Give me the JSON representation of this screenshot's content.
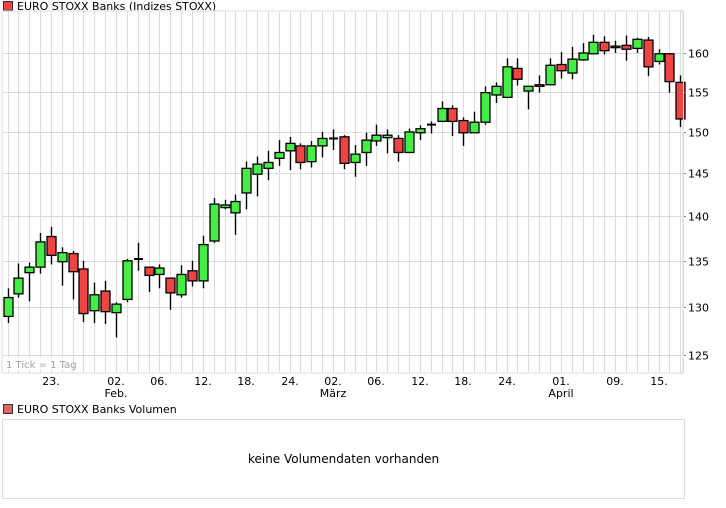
{
  "header": {
    "title": "EURO STOXX Banks (Indizes STOXX)",
    "legend_color": "#ee4444"
  },
  "volume_panel": {
    "title": "EURO STOXX Banks Volumen",
    "legend_color": "#dd6666",
    "message": "keine Volumendaten vorhanden"
  },
  "tick_note": "1 Tick = 1 Tag",
  "colors": {
    "up": "#44ee44",
    "down": "#ee4444",
    "grid": "#dcdcdc",
    "outline": "#000000"
  },
  "chart_data": {
    "type": "candlestick",
    "title": "EURO STOXX Banks (Indizes STOXX)",
    "xlabel": "",
    "ylabel": "",
    "y_scale": "log",
    "ylim": [
      123.5,
      163.5
    ],
    "yticks": [
      125,
      130,
      135,
      140,
      145,
      150,
      155,
      160
    ],
    "grid": true,
    "legend_position": "top-left",
    "x_tick_labels": [
      {
        "index": 4,
        "label": "23.",
        "sub": ""
      },
      {
        "index": 10,
        "label": "02.",
        "sub": "Feb."
      },
      {
        "index": 14,
        "label": "06.",
        "sub": ""
      },
      {
        "index": 18,
        "label": "12.",
        "sub": ""
      },
      {
        "index": 22,
        "label": "18.",
        "sub": ""
      },
      {
        "index": 26,
        "label": "24.",
        "sub": ""
      },
      {
        "index": 30,
        "label": "02.",
        "sub": "März"
      },
      {
        "index": 34,
        "label": "06.",
        "sub": ""
      },
      {
        "index": 38,
        "label": "12.",
        "sub": ""
      },
      {
        "index": 42,
        "label": "18.",
        "sub": ""
      },
      {
        "index": 46,
        "label": "24.",
        "sub": ""
      },
      {
        "index": 51,
        "label": "01.",
        "sub": "April"
      },
      {
        "index": 56,
        "label": "09.",
        "sub": ""
      },
      {
        "index": 60,
        "label": "15.",
        "sub": ""
      }
    ],
    "candles": [
      {
        "o": 129.0,
        "h": 132.0,
        "l": 128.3,
        "c": 131.0
      },
      {
        "o": 131.4,
        "h": 134.7,
        "l": 131.0,
        "c": 133.1
      },
      {
        "o": 133.7,
        "h": 134.8,
        "l": 130.6,
        "c": 134.3
      },
      {
        "o": 134.3,
        "h": 138.1,
        "l": 133.6,
        "c": 137.1
      },
      {
        "o": 137.7,
        "h": 138.8,
        "l": 134.6,
        "c": 135.6
      },
      {
        "o": 134.9,
        "h": 136.5,
        "l": 132.3,
        "c": 135.9
      },
      {
        "o": 135.8,
        "h": 136.1,
        "l": 130.8,
        "c": 133.8
      },
      {
        "o": 134.1,
        "h": 135.0,
        "l": 128.4,
        "c": 129.3
      },
      {
        "o": 129.6,
        "h": 132.6,
        "l": 128.3,
        "c": 131.3
      },
      {
        "o": 131.7,
        "h": 132.8,
        "l": 128.2,
        "c": 129.5
      },
      {
        "o": 129.4,
        "h": 130.5,
        "l": 126.8,
        "c": 130.3
      },
      {
        "o": 130.8,
        "h": 135.2,
        "l": 130.5,
        "c": 135.0
      },
      {
        "o": 135.1,
        "h": 137.0,
        "l": 133.9,
        "c": 135.2
      },
      {
        "o": 134.3,
        "h": 134.3,
        "l": 131.6,
        "c": 133.4
      },
      {
        "o": 133.5,
        "h": 134.6,
        "l": 132.0,
        "c": 134.2
      },
      {
        "o": 133.1,
        "h": 133.1,
        "l": 129.7,
        "c": 131.5
      },
      {
        "o": 131.3,
        "h": 134.5,
        "l": 131.0,
        "c": 133.5
      },
      {
        "o": 133.9,
        "h": 135.0,
        "l": 132.2,
        "c": 132.8
      },
      {
        "o": 132.8,
        "h": 137.8,
        "l": 132.0,
        "c": 136.8
      },
      {
        "o": 137.2,
        "h": 142.1,
        "l": 137.0,
        "c": 141.4
      },
      {
        "o": 141.0,
        "h": 141.9,
        "l": 140.8,
        "c": 141.3
      },
      {
        "o": 140.4,
        "h": 142.5,
        "l": 137.9,
        "c": 141.7
      },
      {
        "o": 142.7,
        "h": 146.4,
        "l": 140.8,
        "c": 145.6
      },
      {
        "o": 144.9,
        "h": 147.0,
        "l": 142.3,
        "c": 146.1
      },
      {
        "o": 145.6,
        "h": 147.7,
        "l": 144.2,
        "c": 146.3
      },
      {
        "o": 146.8,
        "h": 149.0,
        "l": 145.9,
        "c": 147.5
      },
      {
        "o": 147.7,
        "h": 149.4,
        "l": 145.4,
        "c": 148.6
      },
      {
        "o": 148.3,
        "h": 148.6,
        "l": 145.5,
        "c": 146.3
      },
      {
        "o": 146.4,
        "h": 148.9,
        "l": 145.7,
        "c": 148.3
      },
      {
        "o": 148.3,
        "h": 150.0,
        "l": 146.9,
        "c": 149.2
      },
      {
        "o": 149.1,
        "h": 150.3,
        "l": 147.8,
        "c": 149.2
      },
      {
        "o": 149.4,
        "h": 149.6,
        "l": 145.5,
        "c": 146.2
      },
      {
        "o": 146.3,
        "h": 148.4,
        "l": 144.6,
        "c": 147.3
      },
      {
        "o": 147.5,
        "h": 149.9,
        "l": 145.9,
        "c": 149.0
      },
      {
        "o": 148.9,
        "h": 150.9,
        "l": 148.3,
        "c": 149.6
      },
      {
        "o": 149.3,
        "h": 150.3,
        "l": 147.4,
        "c": 149.6
      },
      {
        "o": 149.2,
        "h": 149.6,
        "l": 146.4,
        "c": 147.5
      },
      {
        "o": 147.5,
        "h": 150.4,
        "l": 147.5,
        "c": 150.0
      },
      {
        "o": 149.9,
        "h": 150.8,
        "l": 149.0,
        "c": 150.4
      },
      {
        "o": 150.9,
        "h": 151.3,
        "l": 149.8,
        "c": 150.9
      },
      {
        "o": 151.3,
        "h": 153.8,
        "l": 151.2,
        "c": 152.9
      },
      {
        "o": 152.9,
        "h": 153.3,
        "l": 149.5,
        "c": 151.3
      },
      {
        "o": 151.4,
        "h": 151.8,
        "l": 148.3,
        "c": 149.9
      },
      {
        "o": 149.9,
        "h": 152.5,
        "l": 149.9,
        "c": 151.2
      },
      {
        "o": 151.2,
        "h": 155.7,
        "l": 150.9,
        "c": 154.9
      },
      {
        "o": 154.6,
        "h": 156.2,
        "l": 153.6,
        "c": 155.7
      },
      {
        "o": 154.3,
        "h": 159.3,
        "l": 154.2,
        "c": 158.2
      },
      {
        "o": 158.0,
        "h": 159.3,
        "l": 155.8,
        "c": 156.6
      },
      {
        "o": 155.1,
        "h": 155.7,
        "l": 152.8,
        "c": 155.7
      },
      {
        "o": 155.9,
        "h": 157.1,
        "l": 154.9,
        "c": 155.7
      },
      {
        "o": 155.9,
        "h": 159.3,
        "l": 155.9,
        "c": 158.4
      },
      {
        "o": 158.5,
        "h": 160.1,
        "l": 156.7,
        "c": 157.7
      },
      {
        "o": 157.4,
        "h": 160.8,
        "l": 156.6,
        "c": 159.2
      },
      {
        "o": 159.1,
        "h": 161.3,
        "l": 159.0,
        "c": 160.0
      },
      {
        "o": 159.9,
        "h": 162.4,
        "l": 159.9,
        "c": 161.4
      },
      {
        "o": 161.4,
        "h": 162.2,
        "l": 159.8,
        "c": 160.3
      },
      {
        "o": 160.7,
        "h": 161.6,
        "l": 160.0,
        "c": 160.9
      },
      {
        "o": 161.0,
        "h": 162.3,
        "l": 159.0,
        "c": 160.5
      },
      {
        "o": 160.6,
        "h": 162.0,
        "l": 160.0,
        "c": 161.8
      },
      {
        "o": 161.7,
        "h": 162.1,
        "l": 157.0,
        "c": 158.2
      },
      {
        "o": 158.9,
        "h": 160.5,
        "l": 158.5,
        "c": 159.9
      },
      {
        "o": 159.9,
        "h": 160.0,
        "l": 154.9,
        "c": 156.3
      },
      {
        "o": 156.2,
        "h": 157.1,
        "l": 150.6,
        "c": 151.6
      }
    ]
  }
}
